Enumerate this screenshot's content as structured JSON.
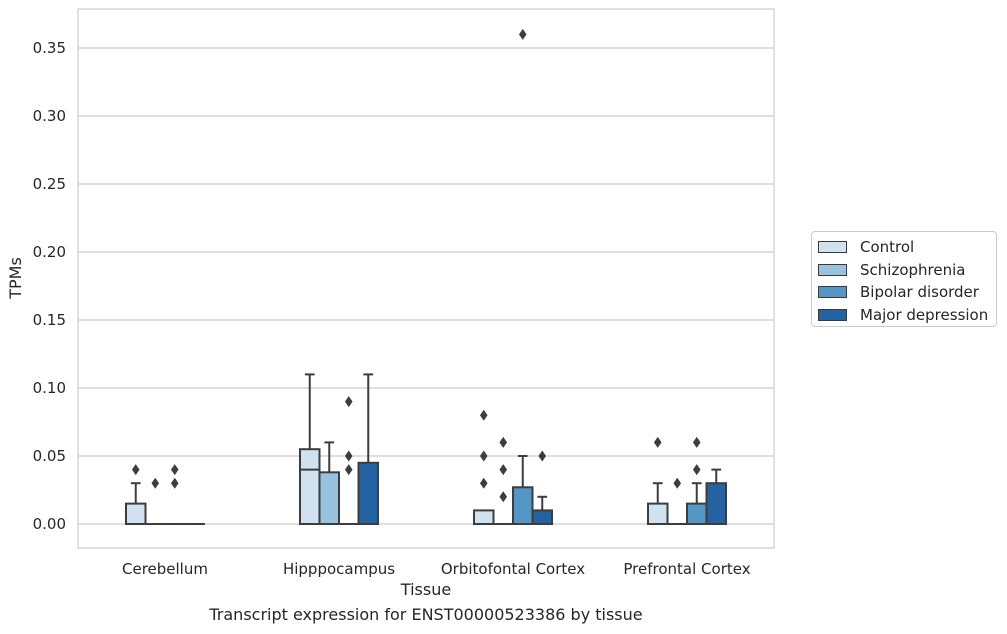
{
  "chart_data": {
    "type": "box",
    "xlabel": "Tissue",
    "ylabel": "TPMs",
    "ylim": [
      -0.018,
      0.378
    ],
    "yticks": [
      "0.00",
      "0.05",
      "0.10",
      "0.15",
      "0.20",
      "0.25",
      "0.30",
      "0.35"
    ],
    "grid": "horizontal",
    "legend_position": "right",
    "categories": [
      "Cerebellum",
      "Hipppocampus",
      "Orbitofontal Cortex",
      "Prefrontal Cortex"
    ],
    "series": [
      {
        "name": "Control",
        "color": "#d0e1f0",
        "boxes": [
          {
            "min": 0.0,
            "q1": 0.0,
            "median": 0.0,
            "q3": 0.015,
            "max": 0.03,
            "outliers": [
              0.04
            ]
          },
          {
            "min": 0.0,
            "q1": 0.0,
            "median": 0.04,
            "q3": 0.055,
            "max": 0.11,
            "outliers": []
          },
          {
            "min": 0.0,
            "q1": 0.0,
            "median": 0.0,
            "q3": 0.01,
            "max": 0.01,
            "outliers": [
              0.03,
              0.05,
              0.08
            ]
          },
          {
            "min": 0.0,
            "q1": 0.0,
            "median": 0.0,
            "q3": 0.015,
            "max": 0.03,
            "outliers": [
              0.06
            ]
          }
        ]
      },
      {
        "name": "Schizophrenia",
        "color": "#99c2de",
        "boxes": [
          {
            "min": 0.0,
            "q1": 0.0,
            "median": 0.0,
            "q3": 0.0,
            "max": 0.0,
            "outliers": [
              0.03
            ]
          },
          {
            "min": 0.0,
            "q1": 0.0,
            "median": 0.0,
            "q3": 0.038,
            "max": 0.06,
            "outliers": []
          },
          {
            "min": 0.0,
            "q1": 0.0,
            "median": 0.0,
            "q3": 0.0,
            "max": 0.0,
            "outliers": [
              0.02,
              0.04,
              0.06
            ]
          },
          {
            "min": 0.0,
            "q1": 0.0,
            "median": 0.0,
            "q3": 0.0,
            "max": 0.0,
            "outliers": [
              0.03
            ]
          }
        ]
      },
      {
        "name": "Bipolar disorder",
        "color": "#5497c7",
        "boxes": [
          {
            "min": 0.0,
            "q1": 0.0,
            "median": 0.0,
            "q3": 0.0,
            "max": 0.0,
            "outliers": [
              0.03,
              0.04
            ]
          },
          {
            "min": 0.0,
            "q1": 0.0,
            "median": 0.0,
            "q3": 0.0,
            "max": 0.0,
            "outliers": [
              0.04,
              0.05,
              0.09
            ]
          },
          {
            "min": 0.0,
            "q1": 0.0,
            "median": 0.0,
            "q3": 0.027,
            "max": 0.05,
            "outliers": [
              0.36
            ]
          },
          {
            "min": 0.0,
            "q1": 0.0,
            "median": 0.0,
            "q3": 0.015,
            "max": 0.03,
            "outliers": [
              0.04,
              0.06
            ]
          }
        ]
      },
      {
        "name": "Major depression",
        "color": "#2463a1",
        "boxes": [
          {
            "min": 0.0,
            "q1": 0.0,
            "median": 0.0,
            "q3": 0.0,
            "max": 0.0,
            "outliers": []
          },
          {
            "min": 0.0,
            "q1": 0.0,
            "median": 0.0,
            "q3": 0.045,
            "max": 0.11,
            "outliers": []
          },
          {
            "min": 0.0,
            "q1": 0.0,
            "median": 0.0,
            "q3": 0.01,
            "max": 0.02,
            "outliers": [
              0.05
            ]
          },
          {
            "min": 0.0,
            "q1": 0.0,
            "median": 0.0,
            "q3": 0.03,
            "max": 0.04,
            "outliers": []
          }
        ]
      }
    ],
    "caption": "Transcript expression for ENST00000523386 by tissue"
  }
}
